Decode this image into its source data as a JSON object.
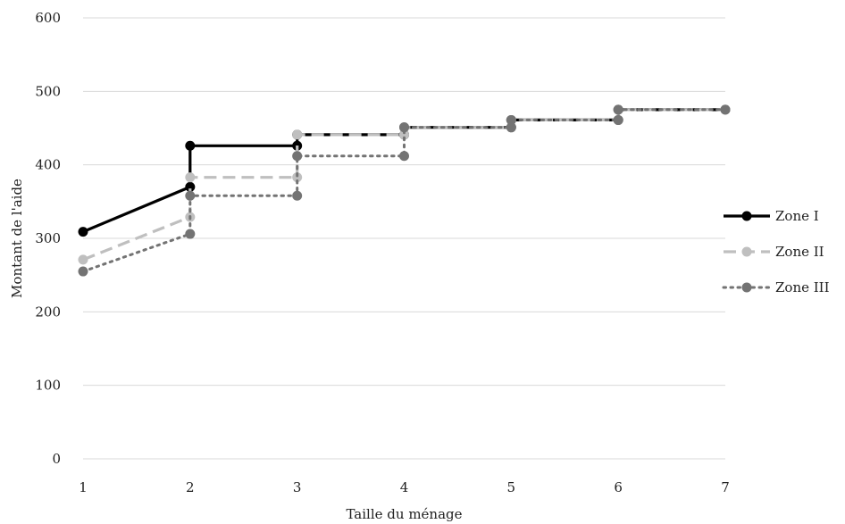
{
  "chart_data": {
    "type": "line",
    "title": "",
    "xlabel": "Taille du ménage",
    "ylabel": "Montant de l'aide",
    "xlim": [
      1,
      7
    ],
    "ylim": [
      0,
      600
    ],
    "x_ticks": [
      1,
      2,
      3,
      4,
      5,
      6,
      7
    ],
    "y_ticks": [
      0,
      100,
      200,
      300,
      400,
      500,
      600
    ],
    "grid": "horizontal",
    "legend_position": "right",
    "series": [
      {
        "name": "Zone I",
        "color": "#000000",
        "dash": "solid",
        "points": [
          [
            1,
            309
          ],
          [
            2,
            370
          ],
          [
            2,
            426
          ],
          [
            3,
            426
          ],
          [
            3,
            441
          ],
          [
            4,
            441
          ],
          [
            4,
            451
          ],
          [
            5,
            451
          ],
          [
            5,
            461
          ],
          [
            6,
            461
          ],
          [
            6,
            475
          ],
          [
            7,
            475
          ]
        ]
      },
      {
        "name": "Zone II",
        "color": "#bfbfbf",
        "dash": "dashed",
        "points": [
          [
            1,
            271
          ],
          [
            2,
            329
          ],
          [
            2,
            383
          ],
          [
            3,
            383
          ],
          [
            3,
            441
          ],
          [
            4,
            441
          ],
          [
            4,
            451
          ],
          [
            5,
            451
          ],
          [
            5,
            461
          ],
          [
            6,
            461
          ],
          [
            6,
            475
          ],
          [
            7,
            475
          ]
        ]
      },
      {
        "name": "Zone III",
        "color": "#737373",
        "dash": "dotted",
        "points": [
          [
            1,
            255
          ],
          [
            2,
            306
          ],
          [
            2,
            358
          ],
          [
            3,
            358
          ],
          [
            3,
            412
          ],
          [
            4,
            412
          ],
          [
            4,
            451
          ],
          [
            5,
            451
          ],
          [
            5,
            461
          ],
          [
            6,
            461
          ],
          [
            6,
            475
          ],
          [
            7,
            475
          ]
        ]
      }
    ]
  }
}
